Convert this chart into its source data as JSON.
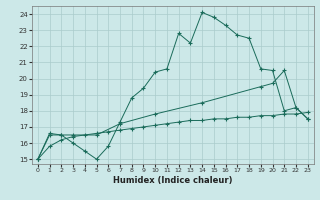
{
  "xlabel": "Humidex (Indice chaleur)",
  "bg_color": "#cce8e8",
  "grid_color": "#aacccc",
  "line_color": "#1a6b5a",
  "xlim": [
    -0.5,
    23.5
  ],
  "ylim": [
    14.7,
    24.5
  ],
  "yticks": [
    15,
    16,
    17,
    18,
    19,
    20,
    21,
    22,
    23,
    24
  ],
  "xticks": [
    0,
    1,
    2,
    3,
    4,
    5,
    6,
    7,
    8,
    9,
    10,
    11,
    12,
    13,
    14,
    15,
    16,
    17,
    18,
    19,
    20,
    21,
    22,
    23
  ],
  "line1_x": [
    0,
    1,
    2,
    3,
    4,
    5,
    6,
    7,
    8,
    9,
    10,
    11,
    12,
    13,
    14,
    15,
    16,
    17,
    18,
    19,
    20,
    21,
    22,
    23
  ],
  "line1_y": [
    15.0,
    16.6,
    16.5,
    16.0,
    15.5,
    15.0,
    15.8,
    17.3,
    18.8,
    19.4,
    20.4,
    20.6,
    22.8,
    22.2,
    24.1,
    23.8,
    23.3,
    22.7,
    22.5,
    20.6,
    20.5,
    18.0,
    18.2,
    17.5
  ],
  "line2_x": [
    0,
    1,
    2,
    3,
    5,
    7,
    10,
    14,
    19,
    20,
    21,
    22,
    23
  ],
  "line2_y": [
    15.0,
    16.5,
    16.5,
    16.5,
    16.5,
    17.2,
    17.8,
    18.5,
    19.5,
    19.7,
    20.5,
    18.2,
    17.5
  ],
  "line3_x": [
    0,
    1,
    2,
    3,
    4,
    5,
    6,
    7,
    8,
    9,
    10,
    11,
    12,
    13,
    14,
    15,
    16,
    17,
    18,
    19,
    20,
    21,
    22,
    23
  ],
  "line3_y": [
    15.0,
    15.8,
    16.2,
    16.4,
    16.5,
    16.6,
    16.7,
    16.8,
    16.9,
    17.0,
    17.1,
    17.2,
    17.3,
    17.4,
    17.4,
    17.5,
    17.5,
    17.6,
    17.6,
    17.7,
    17.7,
    17.8,
    17.8,
    17.9
  ]
}
